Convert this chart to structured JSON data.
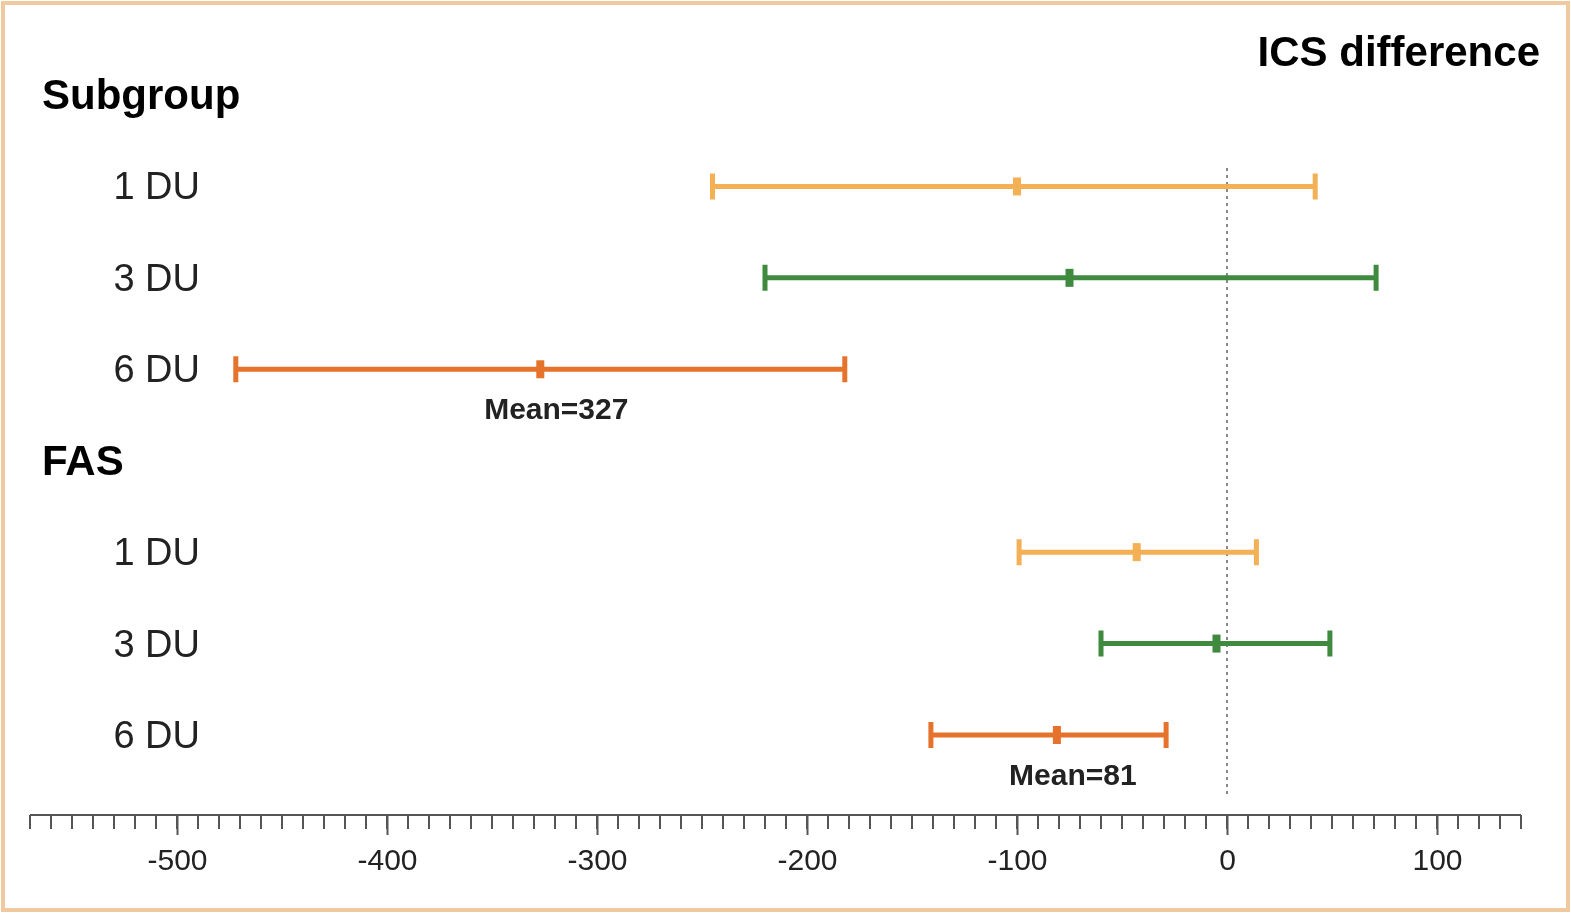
{
  "chart_data": {
    "type": "scatter",
    "title": "ICS difference",
    "categories": [
      "Subgroup",
      "1 DU",
      "3 DU",
      "6 DU",
      "FAS",
      "1 DU",
      "3 DU",
      "6 DU"
    ],
    "orientation": "horizontal",
    "xlim": [
      -570,
      140
    ],
    "xticks": [
      -500,
      -400,
      -300,
      -200,
      -100,
      0,
      100
    ],
    "colors": [
      null,
      "#f4b055",
      "#3f8a3f",
      "#e6732b",
      null,
      "#f4b055",
      "#3f8a3f",
      "#e6732b"
    ],
    "values": [
      null,
      -100,
      -75,
      -327,
      null,
      -43,
      -5,
      -81
    ],
    "errors": [
      null,
      [
        -245,
        42
      ],
      [
        -220,
        71
      ],
      [
        -472,
        -182
      ],
      null,
      [
        -99,
        14
      ],
      [
        -60,
        49
      ],
      [
        -141,
        -29
      ]
    ],
    "annotations": [
      "Mean=327",
      "Mean=81"
    ],
    "ref_lines": [
      {
        "axis": "x",
        "value": 0,
        "color": "#888888",
        "line_style": "dotted"
      }
    ]
  }
}
